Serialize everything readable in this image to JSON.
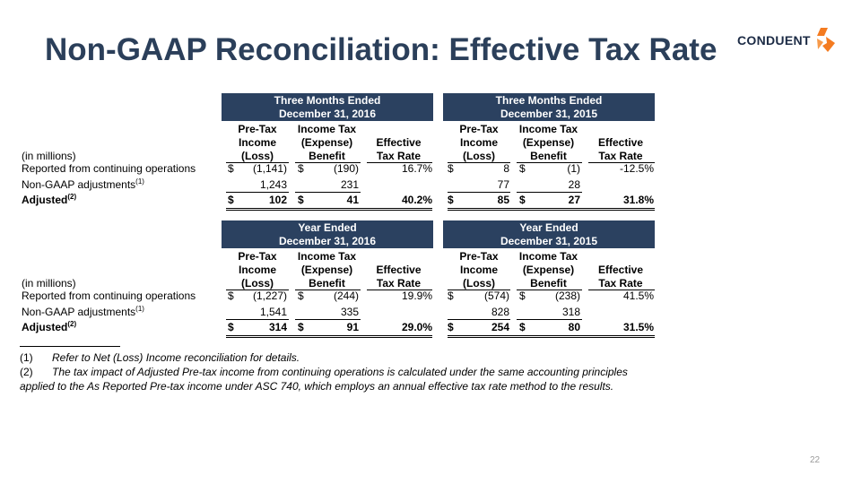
{
  "title": "Non-GAAP Reconciliation: Effective Tax Rate",
  "logo": {
    "text": "CONDUENT",
    "icon": "conduent-logo-icon",
    "colors": {
      "text": "#1c2b45",
      "mark": "#f47b20"
    }
  },
  "colors": {
    "header_bg": "#2b4160",
    "title": "#2b3f5a"
  },
  "units_label": "(in millions)",
  "column_headers": {
    "pretax": [
      "Pre-Tax",
      "Income",
      "(Loss)"
    ],
    "income_tax": [
      "Income Tax",
      "(Expense)",
      "Benefit"
    ],
    "etr": [
      "Effective",
      "Tax Rate"
    ]
  },
  "sections": [
    {
      "period_a": [
        "Three Months Ended",
        "December 31, 2016"
      ],
      "period_b": [
        "Three Months Ended",
        "December 31, 2015"
      ],
      "rows": [
        {
          "label": "Reported from continuing operations",
          "sup": "",
          "a": {
            "dol": "$",
            "pretax": "(1,141)",
            "dol2": "$",
            "tax": "(190)",
            "etr": "16.7%"
          },
          "b": {
            "dol": "$",
            "pretax": "8",
            "dol2": "$",
            "tax": "(1)",
            "etr": "-12.5%"
          }
        },
        {
          "label": "Non-GAAP adjustments",
          "sup": "(1)",
          "a": {
            "dol": "",
            "pretax": "1,243",
            "dol2": "",
            "tax": "231",
            "etr": ""
          },
          "b": {
            "dol": "",
            "pretax": "77",
            "dol2": "",
            "tax": "28",
            "etr": ""
          }
        },
        {
          "label": "Adjusted",
          "sup": "(2)",
          "a": {
            "dol": "$",
            "pretax": "102",
            "dol2": "$",
            "tax": "41",
            "etr": "40.2%"
          },
          "b": {
            "dol": "$",
            "pretax": "85",
            "dol2": "$",
            "tax": "27",
            "etr": "31.8%"
          }
        }
      ]
    },
    {
      "period_a": [
        "Year Ended",
        "December 31, 2016"
      ],
      "period_b": [
        "Year Ended",
        "December 31, 2015"
      ],
      "rows": [
        {
          "label": "Reported from continuing operations",
          "sup": "",
          "a": {
            "dol": "$",
            "pretax": "(1,227)",
            "dol2": "$",
            "tax": "(244)",
            "etr": "19.9%"
          },
          "b": {
            "dol": "$",
            "pretax": "(574)",
            "dol2": "$",
            "tax": "(238)",
            "etr": "41.5%"
          }
        },
        {
          "label": "Non-GAAP adjustments",
          "sup": "(1)",
          "a": {
            "dol": "",
            "pretax": "1,541",
            "dol2": "",
            "tax": "335",
            "etr": ""
          },
          "b": {
            "dol": "",
            "pretax": "828",
            "dol2": "",
            "tax": "318",
            "etr": ""
          }
        },
        {
          "label": "Adjusted",
          "sup": "(2)",
          "a": {
            "dol": "$",
            "pretax": "314",
            "dol2": "$",
            "tax": "91",
            "etr": "29.0%"
          },
          "b": {
            "dol": "$",
            "pretax": "254",
            "dol2": "$",
            "tax": "80",
            "etr": "31.5%"
          }
        }
      ]
    }
  ],
  "footnotes": [
    {
      "num": "(1)",
      "text": "Refer to Net (Loss) Income reconciliation for details."
    },
    {
      "num": "(2)",
      "text": "The tax impact of Adjusted Pre-tax income from continuing operations is calculated under the same accounting principles applied to the As Reported Pre-tax income under ASC 740, which employs an annual effective tax rate method to the results."
    }
  ],
  "page_number": "22"
}
